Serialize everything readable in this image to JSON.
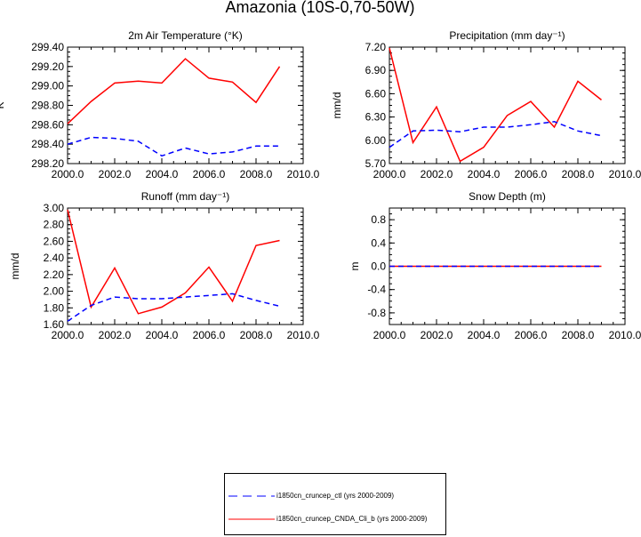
{
  "page_title": "Amazonia (10S-0,70-50W)",
  "colors": {
    "ctl": "#0000ff",
    "exp": "#ff0000"
  },
  "legend": {
    "entries": [
      {
        "label": "i1850cn_cruncep_ctl (yrs 2000-2009)",
        "color": "#0000ff",
        "style": "dashed"
      },
      {
        "label": "i1850cn_cruncep_CNDA_Cli_b (yrs 2000-2009)",
        "color": "#ff0000",
        "style": "solid"
      }
    ]
  },
  "chart_data": [
    {
      "type": "line",
      "title": "2m Air Temperature (°K)",
      "ylabel": "K",
      "xlim": [
        2000,
        2010
      ],
      "ylim": [
        298.2,
        299.4
      ],
      "xticks": [
        2000,
        2002,
        2004,
        2006,
        2008,
        2010
      ],
      "xtick_labels": [
        "2000.0",
        "2002.0",
        "2004.0",
        "2006.0",
        "2008.0",
        "2010.0"
      ],
      "yticks": [
        298.2,
        298.4,
        298.6,
        298.8,
        299.0,
        299.2,
        299.4
      ],
      "ytick_labels": [
        "298.20",
        "298.40",
        "298.60",
        "298.80",
        "299.00",
        "299.20",
        "299.40"
      ],
      "x": [
        2000,
        2001,
        2002,
        2003,
        2004,
        2005,
        2006,
        2007,
        2008,
        2009
      ],
      "series": [
        {
          "name": "i1850cn_cruncep_ctl (yrs 2000-2009)",
          "style": "dashed",
          "color": "#0000ff",
          "values": [
            298.4,
            298.47,
            298.46,
            298.43,
            298.28,
            298.36,
            298.3,
            298.32,
            298.38,
            298.38
          ]
        },
        {
          "name": "i1850cn_cruncep_CNDA_Cli_b (yrs 2000-2009)",
          "style": "solid",
          "color": "#ff0000",
          "values": [
            298.61,
            298.84,
            299.03,
            299.05,
            299.03,
            299.28,
            299.08,
            299.04,
            298.83,
            299.2
          ]
        }
      ]
    },
    {
      "type": "line",
      "title": "Precipitation (mm day⁻¹)",
      "ylabel": "mm/d",
      "xlim": [
        2000,
        2010
      ],
      "ylim": [
        5.7,
        7.2
      ],
      "xticks": [
        2000,
        2002,
        2004,
        2006,
        2008,
        2010
      ],
      "xtick_labels": [
        "2000.0",
        "2002.0",
        "2004.0",
        "2006.0",
        "2008.0",
        "2010.0"
      ],
      "yticks": [
        5.7,
        6.0,
        6.3,
        6.6,
        6.9,
        7.2
      ],
      "ytick_labels": [
        "5.70",
        "6.00",
        "6.30",
        "6.60",
        "6.90",
        "7.20"
      ],
      "x": [
        2000,
        2001,
        2002,
        2003,
        2004,
        2005,
        2006,
        2007,
        2008,
        2009
      ],
      "series": [
        {
          "name": "i1850cn_cruncep_ctl (yrs 2000-2009)",
          "style": "dashed",
          "color": "#0000ff",
          "values": [
            5.91,
            6.12,
            6.13,
            6.11,
            6.17,
            6.17,
            6.2,
            6.24,
            6.12,
            6.06
          ]
        },
        {
          "name": "i1850cn_cruncep_CNDA_Cli_b (yrs 2000-2009)",
          "style": "solid",
          "color": "#ff0000",
          "values": [
            7.19,
            5.97,
            6.43,
            5.73,
            5.91,
            6.32,
            6.5,
            6.17,
            6.76,
            6.52
          ]
        }
      ]
    },
    {
      "type": "line",
      "title": "Runoff (mm day⁻¹)",
      "ylabel": "mm/d",
      "xlim": [
        2000,
        2010
      ],
      "ylim": [
        1.6,
        3.0
      ],
      "xticks": [
        2000,
        2002,
        2004,
        2006,
        2008,
        2010
      ],
      "xtick_labels": [
        "2000.0",
        "2002.0",
        "2004.0",
        "2006.0",
        "2008.0",
        "2010.0"
      ],
      "yticks": [
        1.6,
        1.8,
        2.0,
        2.2,
        2.4,
        2.6,
        2.8,
        3.0
      ],
      "ytick_labels": [
        "1.60",
        "1.80",
        "2.00",
        "2.20",
        "2.40",
        "2.60",
        "2.80",
        "3.00"
      ],
      "x": [
        2000,
        2001,
        2002,
        2003,
        2004,
        2005,
        2006,
        2007,
        2008,
        2009
      ],
      "series": [
        {
          "name": "i1850cn_cruncep_ctl (yrs 2000-2009)",
          "style": "dashed",
          "color": "#0000ff",
          "values": [
            1.64,
            1.83,
            1.93,
            1.91,
            1.91,
            1.93,
            1.95,
            1.97,
            1.89,
            1.82
          ]
        },
        {
          "name": "i1850cn_cruncep_CNDA_Cli_b (yrs 2000-2009)",
          "style": "solid",
          "color": "#ff0000",
          "values": [
            2.98,
            1.81,
            2.28,
            1.73,
            1.81,
            1.98,
            2.29,
            1.88,
            2.55,
            2.61
          ]
        }
      ]
    },
    {
      "type": "line",
      "title": "Snow Depth (m)",
      "ylabel": "m",
      "xlim": [
        2000,
        2010
      ],
      "ylim": [
        -1.0,
        1.0
      ],
      "xticks": [
        2000,
        2002,
        2004,
        2006,
        2008,
        2010
      ],
      "xtick_labels": [
        "2000.0",
        "2002.0",
        "2004.0",
        "2006.0",
        "2008.0",
        "2010.0"
      ],
      "yticks": [
        -0.8,
        -0.4,
        0.0,
        0.4,
        0.8
      ],
      "ytick_labels": [
        "-0.8",
        "-0.4",
        "0.0",
        "0.4",
        "0.8"
      ],
      "x": [
        2000,
        2001,
        2002,
        2003,
        2004,
        2005,
        2006,
        2007,
        2008,
        2009
      ],
      "series": [
        {
          "name": "i1850cn_cruncep_ctl (yrs 2000-2009)",
          "style": "dashed",
          "color": "#0000ff",
          "values": [
            0,
            0,
            0,
            0,
            0,
            0,
            0,
            0,
            0,
            0
          ]
        },
        {
          "name": "i1850cn_cruncep_CNDA_Cli_b (yrs 2000-2009)",
          "style": "solid",
          "color": "#ff0000",
          "values": [
            0,
            0,
            0,
            0,
            0,
            0,
            0,
            0,
            0,
            0
          ]
        }
      ]
    }
  ]
}
